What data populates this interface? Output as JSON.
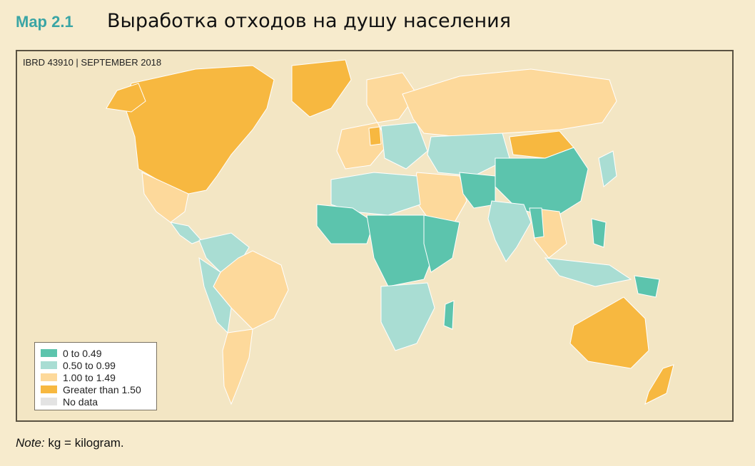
{
  "header": {
    "map_label": "Map 2.1",
    "title": "Выработка отходов на душу населения"
  },
  "map": {
    "id_text": "IBRD 43910 | SEPTEMBER 2018"
  },
  "legend": {
    "items": [
      {
        "label": "0 to 0.49",
        "color": "#5cc4ad"
      },
      {
        "label": "0.50 to 0.99",
        "color": "#a9ddd3"
      },
      {
        "label": "1.00 to 1.49",
        "color": "#fdd99b"
      },
      {
        "label": "Greater than 1.50",
        "color": "#f7b840"
      },
      {
        "label": "No data",
        "color": "#e3e3e3"
      }
    ]
  },
  "note": {
    "prefix": "Note:",
    "text": " kg = kilogram."
  }
}
